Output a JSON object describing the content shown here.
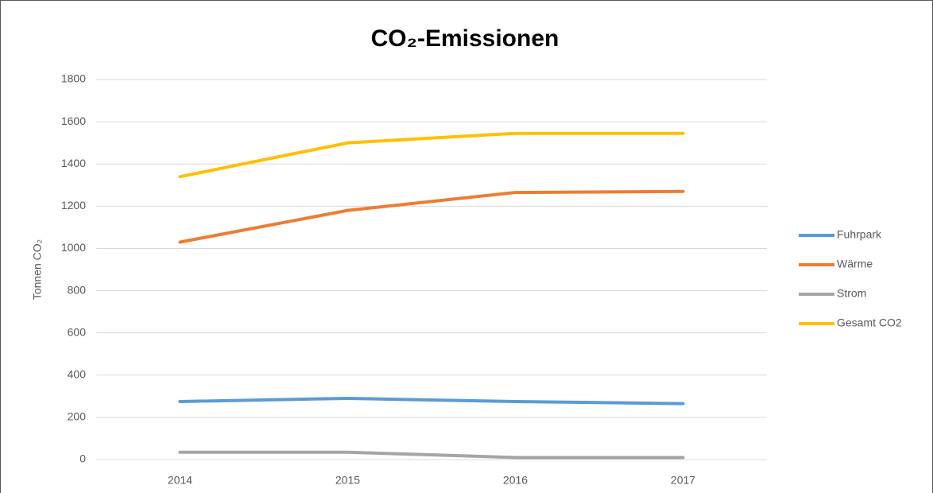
{
  "chart_data": {
    "type": "line",
    "title": "CO₂-Emissionen",
    "y_label": "Tonnen CO₂",
    "categories": [
      "2014",
      "2015",
      "2016",
      "2017"
    ],
    "series": [
      {
        "name": "Fuhrpark",
        "color": "#5b9bd5",
        "values": [
          275,
          290,
          275,
          265
        ]
      },
      {
        "name": "Wärme",
        "color": "#ed7d31",
        "values": [
          1030,
          1180,
          1265,
          1270
        ]
      },
      {
        "name": "Strom",
        "color": "#a5a5a5",
        "values": [
          35,
          35,
          10,
          10
        ]
      },
      {
        "name": "Gesamt CO2",
        "color": "#ffc000",
        "values": [
          1340,
          1500,
          1545,
          1545
        ]
      }
    ],
    "ylim": [
      0,
      1800
    ],
    "yticks": [
      0,
      200,
      400,
      600,
      800,
      1000,
      1200,
      1400,
      1600,
      1800
    ],
    "grid": true,
    "legend": "right"
  }
}
